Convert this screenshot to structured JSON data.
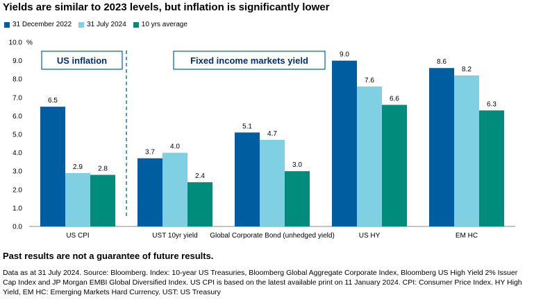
{
  "title": "Yields are similar to 2023 levels, but inflation is significantly lower",
  "disclaimer": "Past results are not a guarantee of future results.",
  "footnote": "Data as at 31 July 2024. Source: Bloomberg. Index: 10-year US Treasuries, Bloomberg Global Aggregate Corporate Index, Bloomberg US High Yield 2% Issuer Cap Index and JP Morgan EMBI Global Diversified Index. US CPI is based on the latest available print on 11 January 2024. CPI: Consumer Price Index. HY High Yield, EM HC: Emerging Markets Hard Currency. UST: US Treasury",
  "colors": {
    "dec2022": "#005DA0",
    "jul2024": "#7FD0E3",
    "avg10": "#008C7A",
    "annotation_text": "#002F6C"
  },
  "chart_data": {
    "type": "bar",
    "categories": [
      "US CPI",
      "UST 10yr yield",
      "Global Corporate Bond (unhedged yield)",
      "US HY",
      "EM HC"
    ],
    "series": [
      {
        "name": "31 December 2022",
        "values": [
          6.5,
          3.7,
          5.1,
          9.0,
          8.6
        ]
      },
      {
        "name": "31 July 2024",
        "values": [
          2.9,
          4.0,
          4.7,
          7.6,
          8.2
        ]
      },
      {
        "name": "10 yrs average",
        "values": [
          2.8,
          2.4,
          3.0,
          6.6,
          6.3
        ]
      }
    ],
    "ylim": [
      0,
      10
    ],
    "yticks": [
      "0.0",
      "1.0",
      "2.0",
      "3.0",
      "4.0",
      "5.0",
      "6.0",
      "7.0",
      "8.0",
      "9.0",
      "10.0"
    ],
    "yunit": "%",
    "legend_position": "top-left",
    "grid": false,
    "annotations": [
      "US inflation",
      "Fixed income markets yield"
    ]
  }
}
